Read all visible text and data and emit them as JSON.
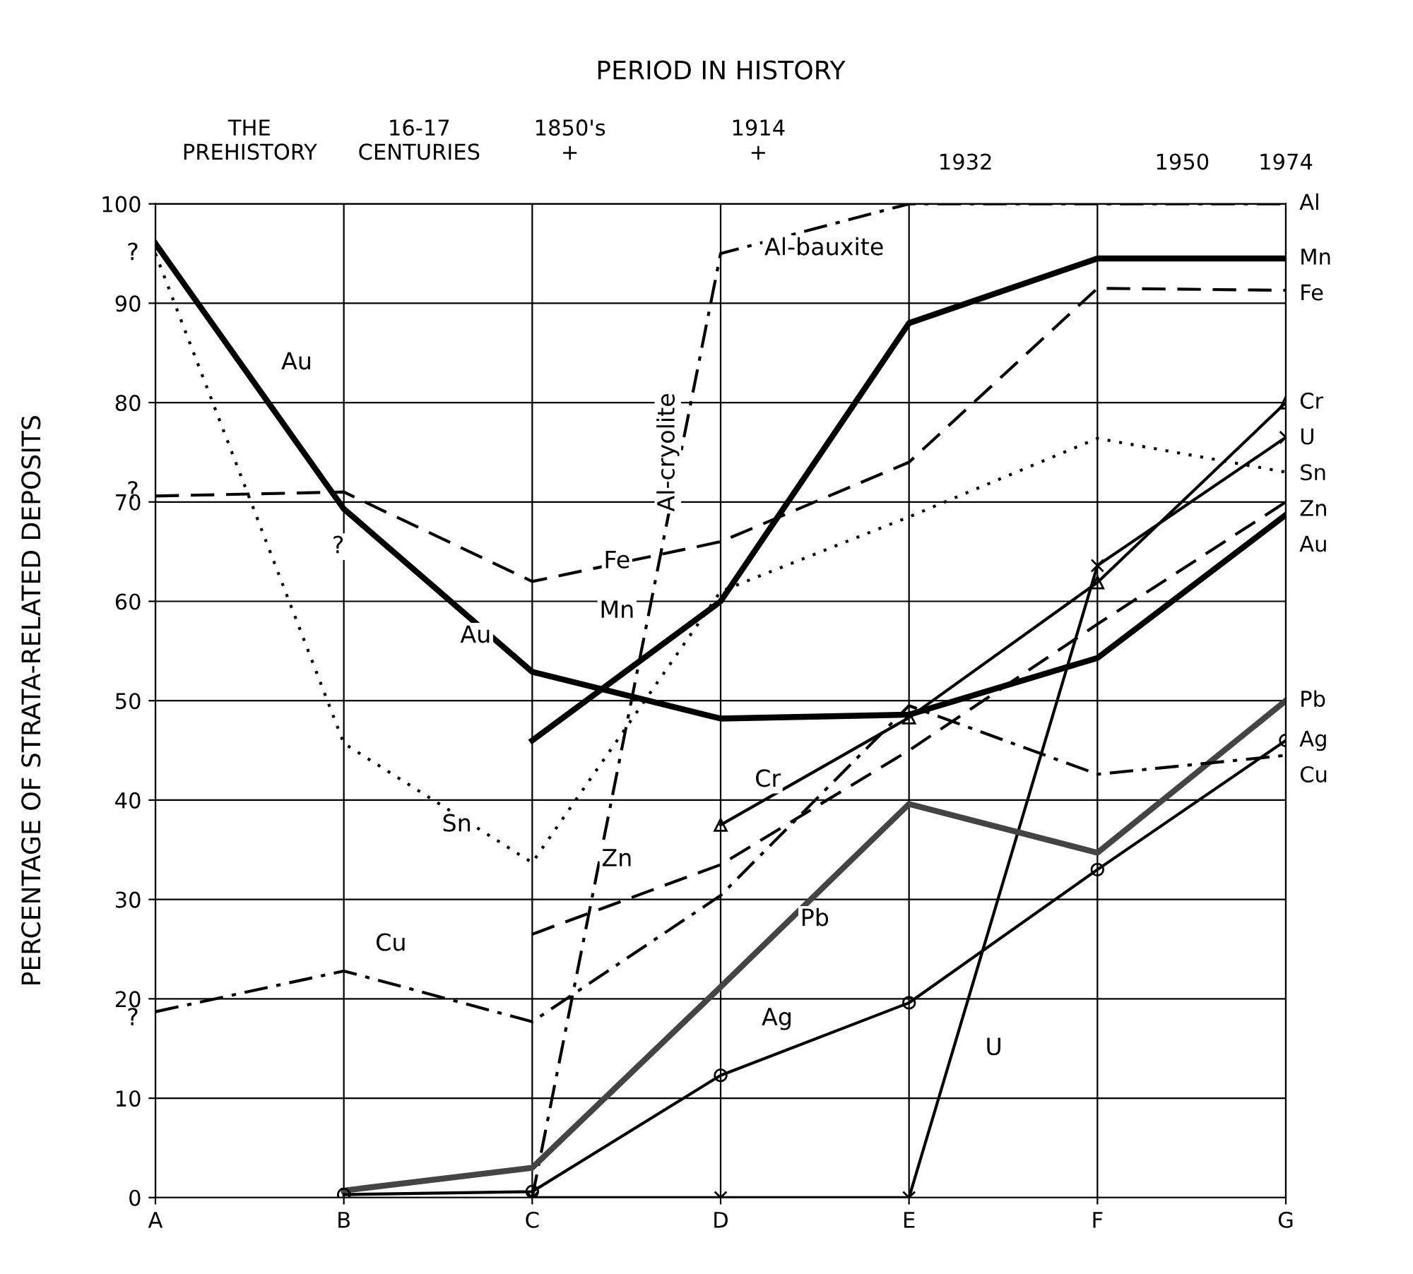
{
  "chart_data": {
    "type": "line",
    "ylabel": "PERCENTAGE OF STRATA-RELATED DEPOSITS",
    "categories": [
      "A",
      "B",
      "C",
      "D",
      "E",
      "F",
      "G"
    ],
    "ylim": [
      0,
      100
    ],
    "yticks": [
      0,
      10,
      20,
      30,
      40,
      50,
      60,
      70,
      80,
      90,
      100
    ],
    "grid": true,
    "series": [
      {
        "name": "Al",
        "color": "#000000",
        "line_style": "dashdot",
        "marker": "none",
        "values": [
          null,
          null,
          0,
          95,
          100,
          100,
          100
        ]
      },
      {
        "name": "Mn",
        "color": "#000000",
        "line_style": "solid",
        "marker": "none",
        "values": [
          null,
          null,
          46,
          60,
          88,
          94.5,
          94.5
        ]
      },
      {
        "name": "Fe",
        "color": "#000000",
        "line_style": "dashed",
        "marker": "none",
        "values": [
          70.6,
          71,
          62,
          66,
          74,
          91.5,
          91.3
        ]
      },
      {
        "name": "Cr",
        "color": "#000000",
        "line_style": "solid",
        "marker": "triangle",
        "values": [
          null,
          null,
          null,
          37.5,
          48.3,
          61.9,
          80
        ]
      },
      {
        "name": "U",
        "color": "#000000",
        "line_style": "solid",
        "marker": "cross",
        "values": [
          null,
          null,
          0,
          0,
          0,
          63.6,
          76.5
        ]
      },
      {
        "name": "Sn",
        "color": "#000000",
        "line_style": "dotted",
        "marker": "none",
        "values": [
          95,
          45.7,
          33.7,
          61,
          68.5,
          76.4,
          73
        ]
      },
      {
        "name": "Zn",
        "color": "#000000",
        "line_style": "dashed",
        "marker": "none",
        "values": [
          null,
          null,
          26.5,
          33.5,
          45,
          57.7,
          70
        ]
      },
      {
        "name": "Au",
        "color": "#000000",
        "line_style": "solid",
        "marker": "none",
        "values": [
          96,
          69.3,
          52.9,
          48.2,
          48.6,
          54.3,
          68.7
        ]
      },
      {
        "name": "Pb",
        "color": "#444444",
        "line_style": "solid",
        "marker": "none",
        "values": [
          null,
          0.7,
          3.0,
          21.2,
          39.6,
          34.7,
          50
        ]
      },
      {
        "name": "Ag",
        "color": "#000000",
        "line_style": "solid",
        "marker": "circle",
        "values": [
          null,
          0.3,
          0.6,
          12.3,
          19.6,
          33,
          46
        ]
      },
      {
        "name": "Cu",
        "color": "#000000",
        "line_style": "dashdot",
        "marker": "none",
        "values": [
          18.7,
          22.8,
          17.7,
          30.4,
          49.5,
          42.6,
          44.5
        ]
      }
    ],
    "annotations": [
      "PERIOD IN HISTORY",
      "THE\nPREHISTORY",
      "16-17\nCENTURIES",
      "1850's\n+",
      "1914\n+",
      "1932",
      "1950",
      "1974",
      "Au",
      "Au",
      "Fe",
      "Mn",
      "Sn",
      "Cu",
      "Cr",
      "Zn",
      "Pb",
      "Ag",
      "U",
      "Al-cryolite",
      "Al-bauxite",
      "?",
      "?",
      "?",
      "?"
    ]
  }
}
